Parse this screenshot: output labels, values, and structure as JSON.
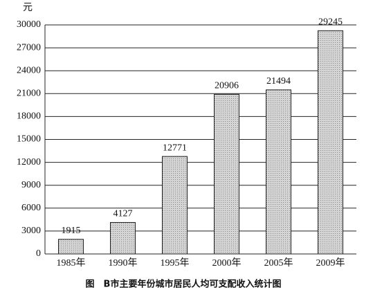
{
  "chart_data": {
    "type": "bar",
    "title": "图　B市主要年份城市居民人均可支配收入统计图",
    "y_label": "元",
    "categories": [
      "1985年",
      "1990年",
      "1995年",
      "2000年",
      "2005年",
      "2009年"
    ],
    "values": [
      1915,
      4127,
      12771,
      20906,
      21494,
      29245
    ],
    "color": "#cfcfcf",
    "ylim": [
      0,
      30000
    ],
    "yticks": [
      0,
      3000,
      6000,
      9000,
      12000,
      15000,
      18000,
      21000,
      24000,
      27000,
      30000
    ],
    "grid": true
  }
}
